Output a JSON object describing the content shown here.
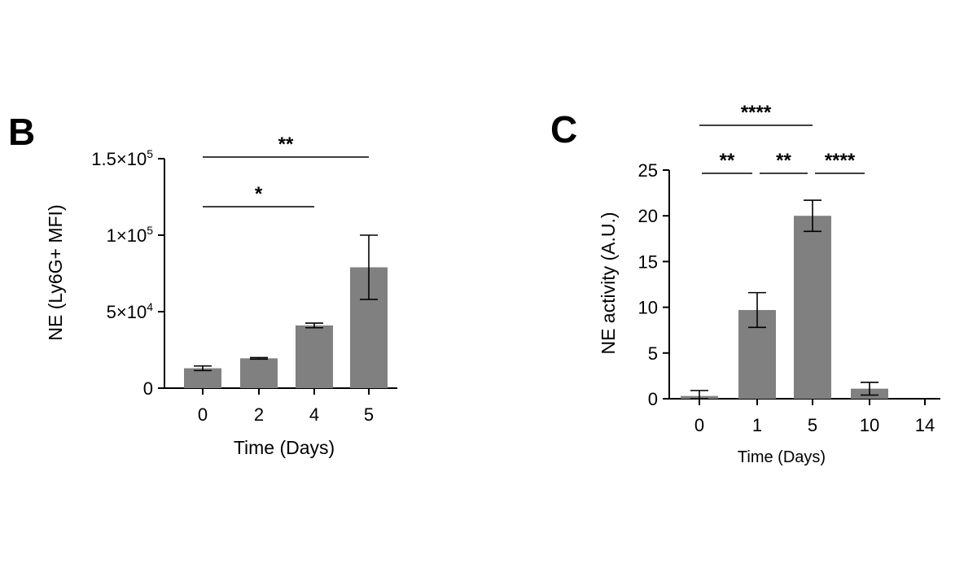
{
  "chart_data": [
    {
      "panel": "B",
      "type": "bar",
      "categories": [
        "0",
        "2",
        "4",
        "5"
      ],
      "values": [
        13000,
        19500,
        41000,
        79000
      ],
      "errors": [
        1500,
        500,
        1500,
        21000
      ],
      "xlabel": "Time (Days)",
      "ylabel": "NE (Ly6G+ MFI)",
      "ylim": [
        0,
        150000
      ],
      "yticks": [
        {
          "value": 0,
          "base": "0",
          "exp": ""
        },
        {
          "value": 50000,
          "base": "5×10",
          "exp": "4"
        },
        {
          "value": 100000,
          "base": "1×10",
          "exp": "5"
        },
        {
          "value": 150000,
          "base": "1.5×10",
          "exp": "5"
        }
      ],
      "bar_color": "#808080",
      "significance": [
        {
          "from": "0",
          "to": "4",
          "label": "*"
        },
        {
          "from": "0",
          "to": "5",
          "label": "**"
        }
      ]
    },
    {
      "panel": "C",
      "type": "bar",
      "categories": [
        "0",
        "1",
        "5",
        "10",
        "14"
      ],
      "values": [
        0.3,
        9.7,
        20.0,
        1.1,
        0.0
      ],
      "errors": [
        0.6,
        1.9,
        1.7,
        0.7,
        0.0
      ],
      "xlabel": "Time (Days)",
      "ylabel": "NE  activity (A.U.)",
      "ylim": [
        0,
        25
      ],
      "yticks": [
        {
          "value": 0,
          "base": "0",
          "exp": ""
        },
        {
          "value": 5,
          "base": "5",
          "exp": ""
        },
        {
          "value": 10,
          "base": "10",
          "exp": ""
        },
        {
          "value": 15,
          "base": "15",
          "exp": ""
        },
        {
          "value": 20,
          "base": "20",
          "exp": ""
        },
        {
          "value": 25,
          "base": "25",
          "exp": ""
        }
      ],
      "bar_color": "#808080",
      "significance": [
        {
          "from": "0",
          "to": "5",
          "label": "****"
        },
        {
          "from": "0",
          "to": "1",
          "label": "**"
        },
        {
          "from": "1",
          "to": "5",
          "label": "**"
        },
        {
          "from": "5",
          "to": "10",
          "label": "****"
        }
      ]
    }
  ]
}
